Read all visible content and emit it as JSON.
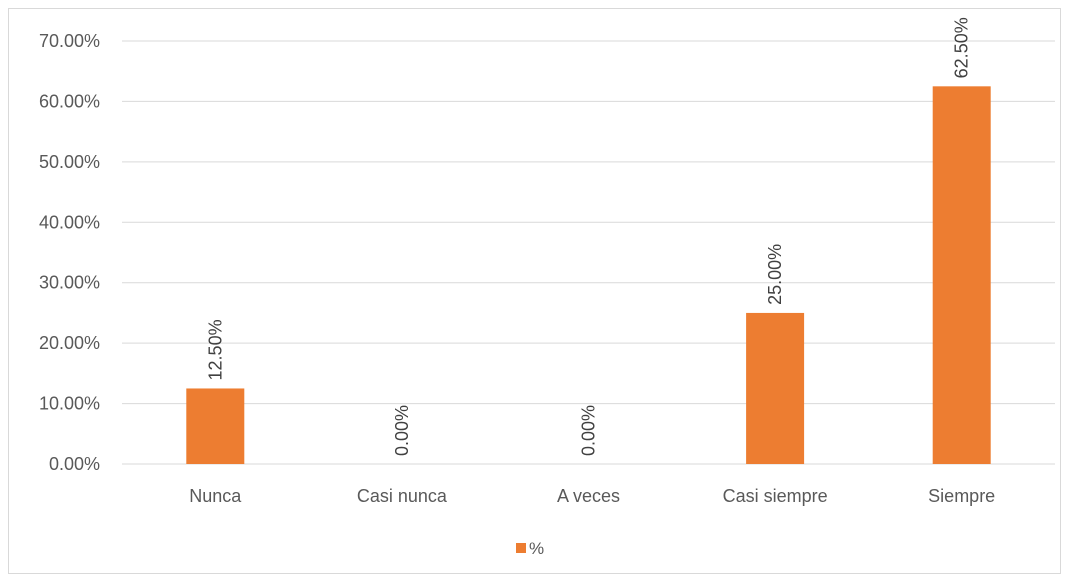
{
  "chart_data": {
    "type": "bar",
    "categories": [
      "Nunca",
      "Casi nunca",
      "A veces",
      "Casi siempre",
      "Siempre"
    ],
    "series": [
      {
        "name": "%",
        "values": [
          12.5,
          0,
          0,
          25,
          62.5
        ],
        "color": "#ED7D31"
      }
    ],
    "data_labels": [
      "12.50%",
      "0.00%",
      "0.00%",
      "25.00%",
      "62.50%"
    ],
    "yticks": [
      0,
      10,
      20,
      30,
      40,
      50,
      60,
      70
    ],
    "ytick_labels": [
      "0.00%",
      "10.00%",
      "20.00%",
      "30.00%",
      "40.00%",
      "50.00%",
      "60.00%",
      "70.00%"
    ],
    "ylim": [
      0,
      70
    ],
    "grid": true,
    "legend_position": "bottom",
    "gridline_color": "#d9d9d9",
    "bar_color": "#ED7D31"
  }
}
